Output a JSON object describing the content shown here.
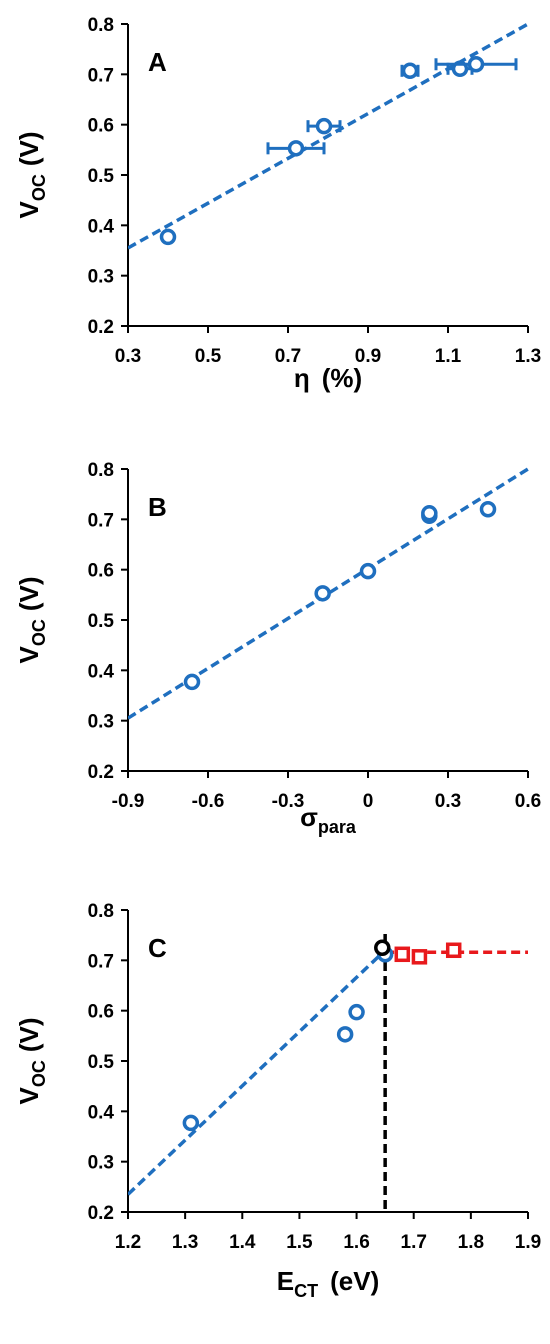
{
  "colors": {
    "blue": "#1f6fbf",
    "red": "#e8191c",
    "black": "#000000",
    "background": "#ffffff"
  },
  "chart_data": [
    {
      "panel": "A",
      "type": "scatter",
      "xlabel_main": "η",
      "xlabel_unit": "(%)",
      "ylabel_main": "V",
      "ylabel_sub": "OC",
      "ylabel_unit": "(V)",
      "xlim": [
        0.3,
        1.3
      ],
      "ylim": [
        0.2,
        0.8
      ],
      "xticks": [
        "0.3",
        "0.5",
        "0.7",
        "0.9",
        "1.1",
        "1.3"
      ],
      "yticks": [
        "0.2",
        "0.3",
        "0.4",
        "0.5",
        "0.6",
        "0.7",
        "0.8"
      ],
      "grid": false,
      "series": [
        {
          "color": "#1f6fbf",
          "marker": "circle",
          "points": [
            {
              "x": 0.4,
              "y": 0.377,
              "xerr": 0
            },
            {
              "x": 0.72,
              "y": 0.553,
              "xerr": 0.07
            },
            {
              "x": 0.79,
              "y": 0.597,
              "xerr": 0.04
            },
            {
              "x": 1.005,
              "y": 0.707,
              "xerr": 0.02
            },
            {
              "x": 1.13,
              "y": 0.711,
              "xerr": 0.03
            },
            {
              "x": 1.17,
              "y": 0.72,
              "xerr": 0.1
            }
          ]
        }
      ],
      "trendlines": [
        {
          "color": "#1f6fbf",
          "x1": 0.3,
          "y1": 0.355,
          "x2": 1.3,
          "y2": 0.8
        }
      ]
    },
    {
      "panel": "B",
      "type": "scatter",
      "xlabel_main": "σ",
      "xlabel_sub": "para",
      "ylabel_main": "V",
      "ylabel_sub": "OC",
      "ylabel_unit": "(V)",
      "xlim": [
        -0.9,
        0.6
      ],
      "ylim": [
        0.2,
        0.8
      ],
      "xticks": [
        "-0.9",
        "-0.6",
        "-0.3",
        "0",
        "0.3",
        "0.6"
      ],
      "yticks": [
        "0.2",
        "0.3",
        "0.4",
        "0.5",
        "0.6",
        "0.7",
        "0.8"
      ],
      "grid": false,
      "series": [
        {
          "color": "#1f6fbf",
          "marker": "circle",
          "points": [
            {
              "x": -0.66,
              "y": 0.377
            },
            {
              "x": -0.17,
              "y": 0.553
            },
            {
              "x": 0.0,
              "y": 0.597
            },
            {
              "x": 0.23,
              "y": 0.707
            },
            {
              "x": 0.23,
              "y": 0.712
            },
            {
              "x": 0.45,
              "y": 0.72
            }
          ]
        }
      ],
      "trendlines": [
        {
          "color": "#1f6fbf",
          "x1": -0.9,
          "y1": 0.305,
          "x2": 0.6,
          "y2": 0.8
        }
      ]
    },
    {
      "panel": "C",
      "type": "scatter",
      "xlabel_main": "E",
      "xlabel_sub": "CT",
      "xlabel_unit": "(eV)",
      "ylabel_main": "V",
      "ylabel_sub": "OC",
      "ylabel_unit": "(V)",
      "xlim": [
        1.2,
        1.9
      ],
      "ylim": [
        0.2,
        0.8
      ],
      "xticks": [
        "1.2",
        "1.3",
        "1.4",
        "1.5",
        "1.6",
        "1.7",
        "1.8",
        "1.9"
      ],
      "yticks": [
        "0.2",
        "0.3",
        "0.4",
        "0.5",
        "0.6",
        "0.7",
        "0.8"
      ],
      "grid": false,
      "series": [
        {
          "color": "#1f6fbf",
          "marker": "circle",
          "points": [
            {
              "x": 1.31,
              "y": 0.377
            },
            {
              "x": 1.58,
              "y": 0.553
            },
            {
              "x": 1.6,
              "y": 0.597
            },
            {
              "x": 1.65,
              "y": 0.712
            }
          ]
        },
        {
          "color": "#000000",
          "marker": "circle",
          "points": [
            {
              "x": 1.645,
              "y": 0.725
            }
          ]
        },
        {
          "color": "#e8191c",
          "marker": "square",
          "points": [
            {
              "x": 1.68,
              "y": 0.712
            },
            {
              "x": 1.71,
              "y": 0.707
            },
            {
              "x": 1.77,
              "y": 0.72
            }
          ]
        }
      ],
      "trendlines": [
        {
          "color": "#1f6fbf",
          "x1": 1.2,
          "y1": 0.235,
          "x2": 1.65,
          "y2": 0.72
        },
        {
          "color": "#e8191c",
          "x1": 1.65,
          "y1": 0.716,
          "x2": 1.9,
          "y2": 0.716
        }
      ],
      "vlines": [
        {
          "color": "#000000",
          "x": 1.65
        }
      ]
    }
  ]
}
